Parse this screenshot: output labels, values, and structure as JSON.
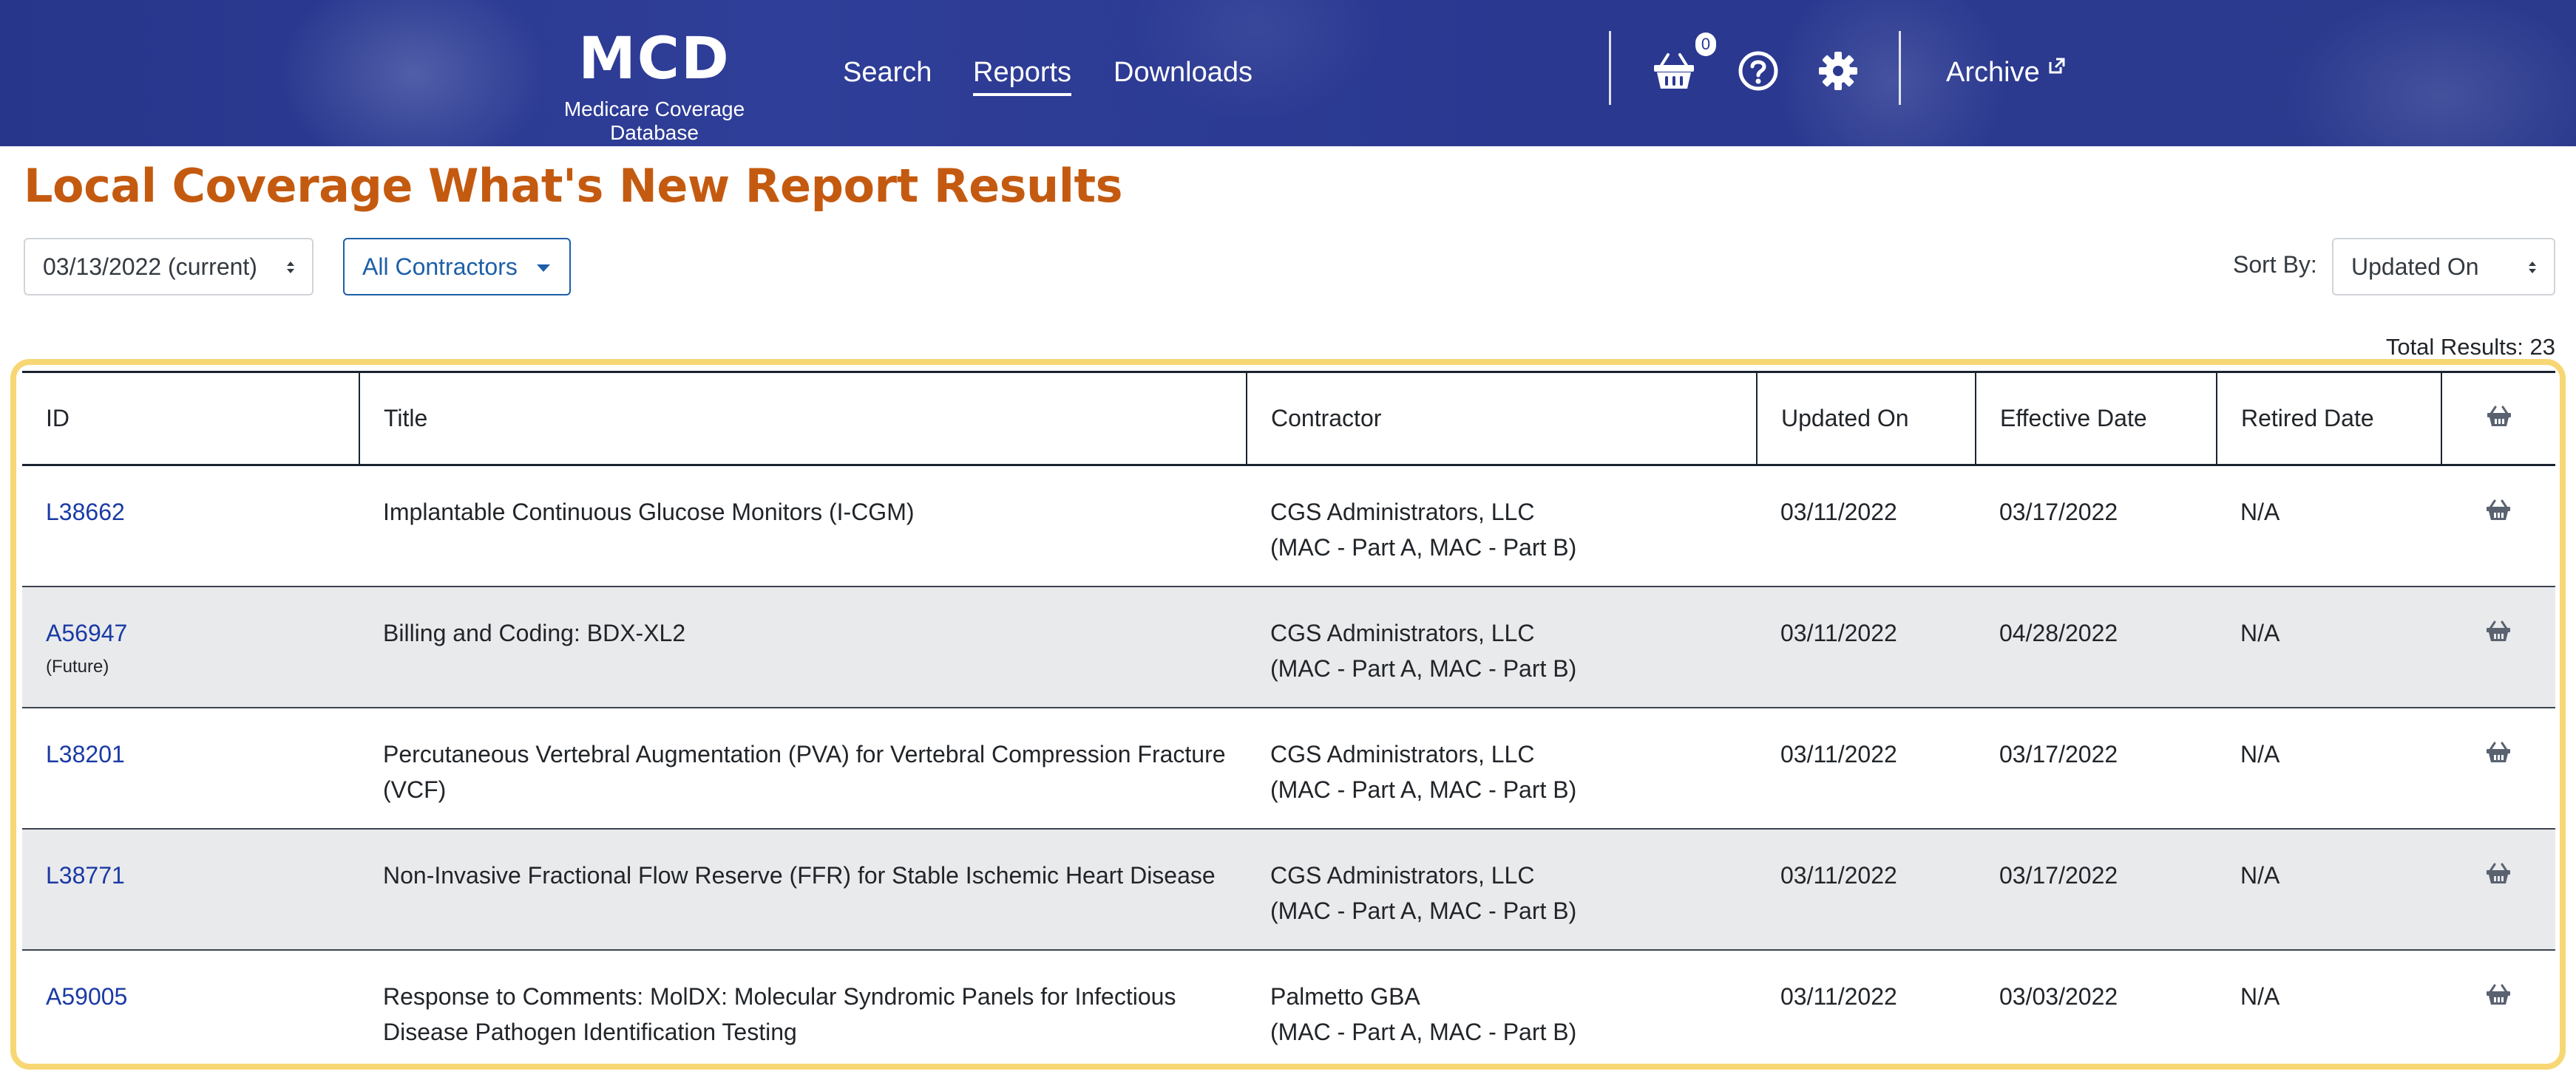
{
  "header": {
    "logo_title": "MCD",
    "logo_subtitle": "Medicare Coverage Database",
    "nav": [
      {
        "label": "Search"
      },
      {
        "label": "Reports"
      },
      {
        "label": "Downloads"
      }
    ],
    "cart_count": "0",
    "archive_label": "Archive",
    "icons": [
      "basket-icon",
      "help-icon",
      "gear-icon",
      "external-link-icon"
    ]
  },
  "page_title": "Local Coverage What's New Report Results",
  "filters": {
    "date_select": "03/13/2022 (current)",
    "contractors_button": "All Contractors",
    "sort_label": "Sort By:",
    "sort_select": "Updated On"
  },
  "total_results": "Total Results: 23",
  "table": {
    "headers": [
      "ID",
      "Title",
      "Contractor",
      "Updated On",
      "Effective Date",
      "Retired Date"
    ],
    "rows": [
      {
        "id": "L38662",
        "note": "",
        "title": "Implantable Continuous Glucose Monitors (I-CGM)",
        "contractor": "CGS Administrators, LLC",
        "contractor_type": "(MAC - Part A, MAC - Part B)",
        "updated": "03/11/2022",
        "effective": "03/17/2022",
        "retired": "N/A"
      },
      {
        "id": "A56947",
        "note": "(Future)",
        "title": "Billing and Coding: BDX-XL2",
        "contractor": "CGS Administrators, LLC",
        "contractor_type": "(MAC - Part A, MAC - Part B)",
        "updated": "03/11/2022",
        "effective": "04/28/2022",
        "retired": "N/A"
      },
      {
        "id": "L38201",
        "note": "",
        "title": "Percutaneous Vertebral Augmentation (PVA) for Vertebral Compression Fracture (VCF)",
        "contractor": "CGS Administrators, LLC",
        "contractor_type": "(MAC - Part A, MAC - Part B)",
        "updated": "03/11/2022",
        "effective": "03/17/2022",
        "retired": "N/A"
      },
      {
        "id": "L38771",
        "note": "",
        "title": "Non-Invasive Fractional Flow Reserve (FFR) for Stable Ischemic Heart Disease",
        "contractor": "CGS Administrators, LLC",
        "contractor_type": "(MAC - Part A, MAC - Part B)",
        "updated": "03/11/2022",
        "effective": "03/17/2022",
        "retired": "N/A"
      },
      {
        "id": "A59005",
        "note": "",
        "title": "Response to Comments: MolDX: Molecular Syndromic Panels for Infectious Disease Pathogen Identification Testing",
        "contractor": "Palmetto GBA",
        "contractor_type": "(MAC - Part A, MAC - Part B)",
        "updated": "03/11/2022",
        "effective": "03/03/2022",
        "retired": "N/A"
      }
    ]
  },
  "colors": {
    "header_bg": "#2b3a8f",
    "title": "#c45a10",
    "link": "#1a3aa5",
    "highlight": "#f7d774",
    "row_alt": "#e9eaec"
  }
}
